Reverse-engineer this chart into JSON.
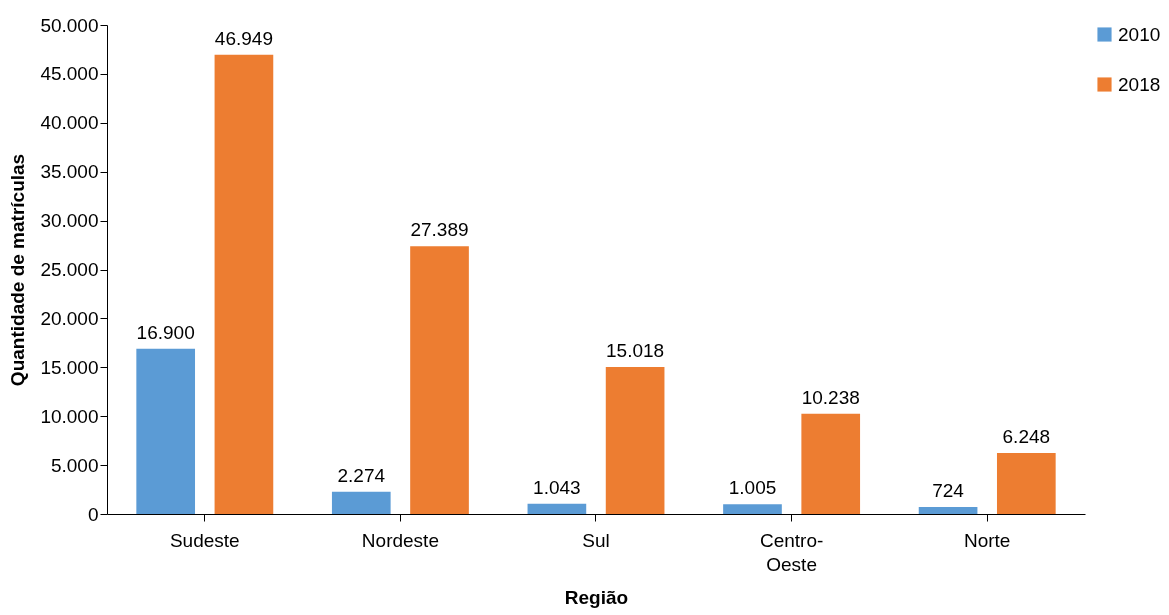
{
  "chart_data": {
    "type": "bar",
    "xlabel": "Região",
    "ylabel": "Quantidade de matrículas",
    "categories": [
      "Sudeste",
      "Nordeste",
      "Sul",
      "Centro-Oeste",
      "Norte"
    ],
    "series": [
      {
        "name": "2010",
        "color": "#5b9bd5",
        "values": [
          16900,
          2274,
          1043,
          1005,
          724
        ],
        "value_labels": [
          "16.900",
          "2.274",
          "1.043",
          "1.005",
          "724"
        ]
      },
      {
        "name": "2018",
        "color": "#ed7d31",
        "values": [
          46949,
          27389,
          15018,
          10238,
          6248
        ],
        "value_labels": [
          "46.949",
          "27.389",
          "15.018",
          "10.238",
          "6.248"
        ]
      }
    ],
    "ylim": [
      0,
      50000
    ],
    "yticks": [
      {
        "value": 0,
        "label": "0"
      },
      {
        "value": 5000,
        "label": "5.000"
      },
      {
        "value": 10000,
        "label": "10.000"
      },
      {
        "value": 15000,
        "label": "15.000"
      },
      {
        "value": 20000,
        "label": "20.000"
      },
      {
        "value": 25000,
        "label": "25.000"
      },
      {
        "value": 30000,
        "label": "30.000"
      },
      {
        "value": 35000,
        "label": "35.000"
      },
      {
        "value": 40000,
        "label": "40.000"
      },
      {
        "value": 45000,
        "label": "45.000"
      },
      {
        "value": 50000,
        "label": "50.000"
      }
    ],
    "grid": false,
    "legend": "right"
  }
}
